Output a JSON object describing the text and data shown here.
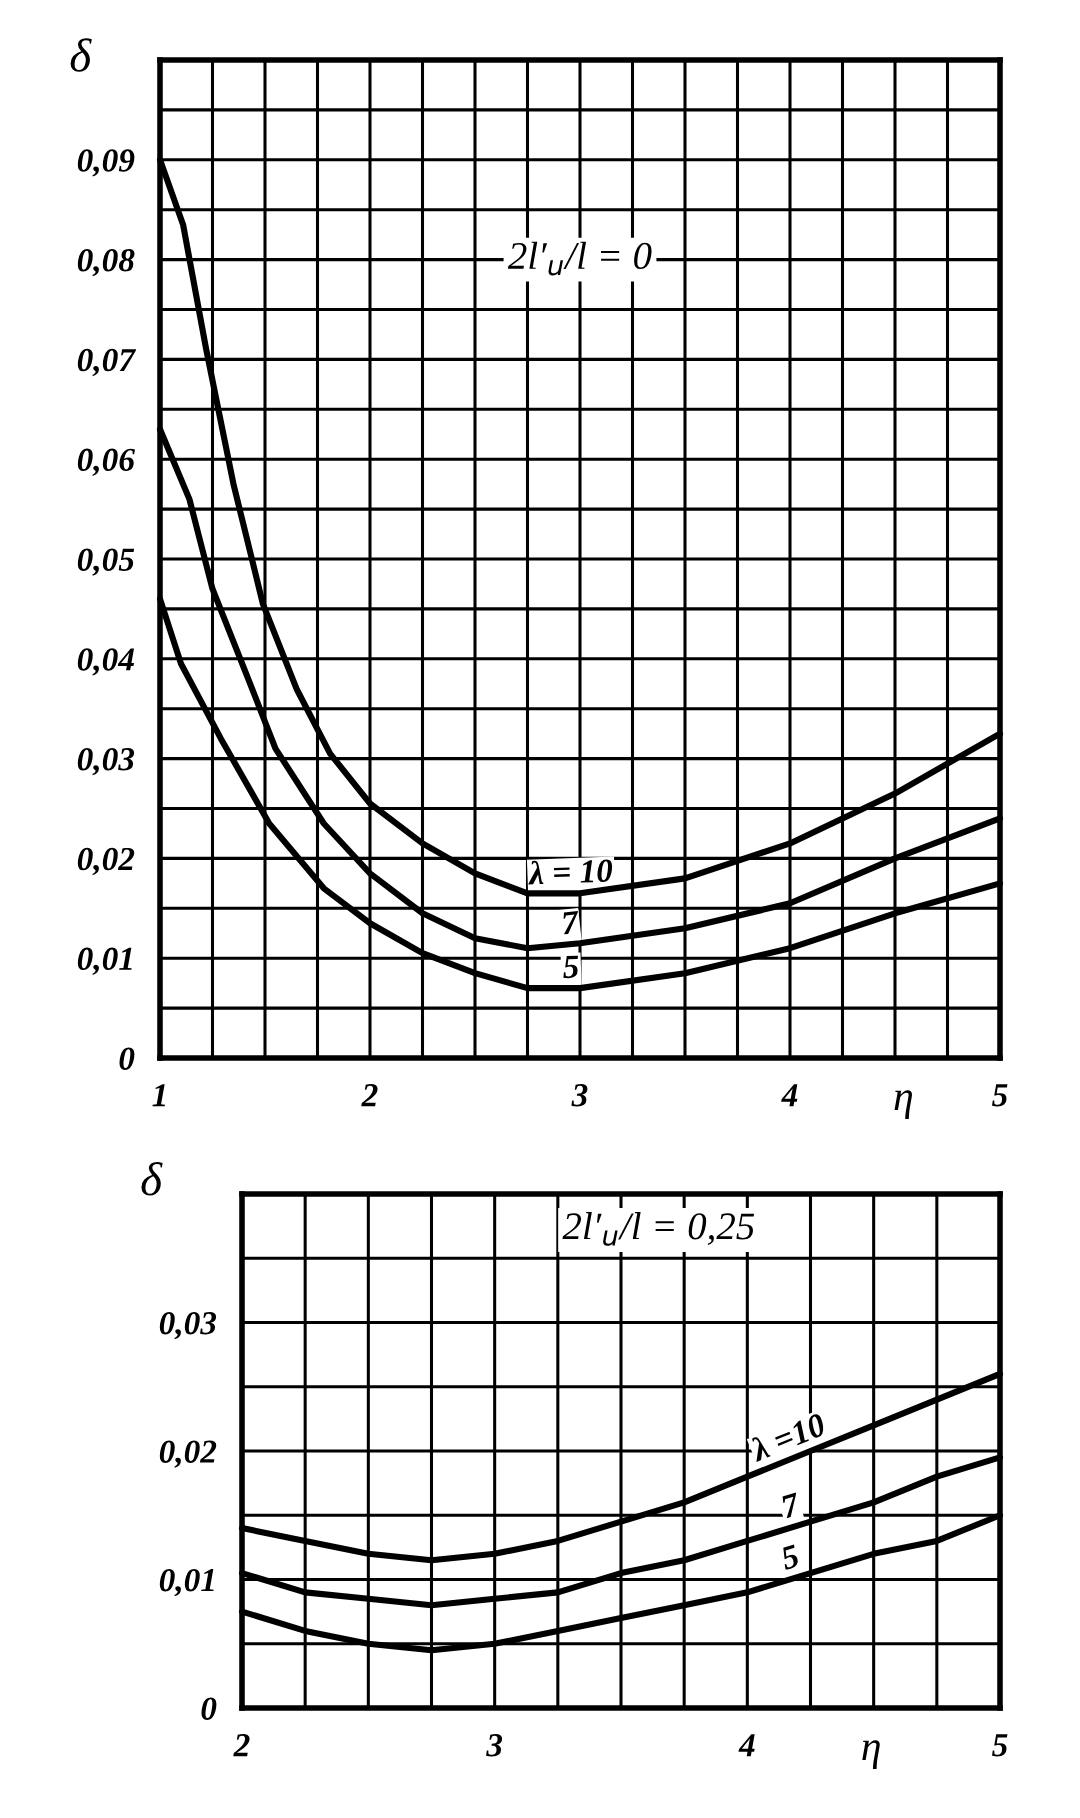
{
  "chart_data": [
    {
      "type": "line",
      "xlabel": "η",
      "ylabel": "δ",
      "annotations": [
        "2l′$_{u}$/l = 0"
      ],
      "xlim": [
        1,
        5
      ],
      "ylim": [
        0,
        0.1
      ],
      "xticks": [
        1,
        {
          "value": 1.25,
          "label": null
        },
        {
          "value": 1.5,
          "label": null
        },
        {
          "value": 1.75,
          "label": null
        },
        2,
        {
          "value": 2.25,
          "label": null
        },
        {
          "value": 2.5,
          "label": null
        },
        {
          "value": 2.75,
          "label": null
        },
        3,
        {
          "value": 3.25,
          "label": null
        },
        {
          "value": 3.5,
          "label": null
        },
        {
          "value": 3.75,
          "label": null
        },
        4,
        {
          "value": 4.25,
          "label": null
        },
        {
          "value": 4.5,
          "label": null
        },
        {
          "value": 4.75,
          "label": null
        },
        5
      ],
      "yticks": [
        0,
        {
          "value": 0.005,
          "label": null
        },
        {
          "value": 0.01,
          "label": "0,01"
        },
        {
          "value": 0.015,
          "label": null
        },
        {
          "value": 0.02,
          "label": "0,02"
        },
        {
          "value": 0.025,
          "label": null
        },
        {
          "value": 0.03,
          "label": "0,03"
        },
        {
          "value": 0.035,
          "label": null
        },
        {
          "value": 0.04,
          "label": "0,04"
        },
        {
          "value": 0.045,
          "label": null
        },
        {
          "value": 0.05,
          "label": "0,05"
        },
        {
          "value": 0.055,
          "label": null
        },
        {
          "value": 0.06,
          "label": "0,06"
        },
        {
          "value": 0.065,
          "label": null
        },
        {
          "value": 0.07,
          "label": "0,07"
        },
        {
          "value": 0.075,
          "label": null
        },
        {
          "value": 0.08,
          "label": "0,08"
        },
        {
          "value": 0.085,
          "label": null
        },
        {
          "value": 0.09,
          "label": "0,09"
        },
        {
          "value": 0.095,
          "label": null
        },
        {
          "value": 0.1,
          "label": null
        }
      ],
      "grid": true,
      "series": [
        {
          "name": "λ = 10",
          "color": "#000000",
          "x": [
            1.0,
            1.11,
            1.22,
            1.35,
            1.49,
            1.65,
            1.81,
            2.0,
            2.25,
            2.5,
            2.75,
            3.0,
            3.5,
            4.0,
            4.5,
            5.0
          ],
          "values": [
            0.09,
            0.0835,
            0.071,
            0.0575,
            0.0455,
            0.037,
            0.0305,
            0.0255,
            0.0215,
            0.0185,
            0.0165,
            0.0165,
            0.018,
            0.0215,
            0.0265,
            0.0325
          ]
        },
        {
          "name": "7",
          "color": "#000000",
          "x": [
            1.0,
            1.14,
            1.25,
            1.42,
            1.55,
            1.78,
            2.0,
            2.25,
            2.5,
            2.75,
            3.0,
            3.5,
            4.0,
            4.5,
            5.0
          ],
          "values": [
            0.063,
            0.056,
            0.047,
            0.038,
            0.031,
            0.0235,
            0.0185,
            0.0145,
            0.012,
            0.011,
            0.0115,
            0.013,
            0.0155,
            0.02,
            0.024
          ]
        },
        {
          "name": "5",
          "color": "#000000",
          "x": [
            1.0,
            1.1,
            1.29,
            1.52,
            1.78,
            2.0,
            2.25,
            2.5,
            2.75,
            3.0,
            3.5,
            4.0,
            4.5,
            5.0
          ],
          "values": [
            0.046,
            0.0395,
            0.032,
            0.0235,
            0.017,
            0.0135,
            0.0105,
            0.0085,
            0.007,
            0.007,
            0.0085,
            0.011,
            0.0145,
            0.0175
          ]
        }
      ]
    },
    {
      "type": "line",
      "xlabel": "η",
      "ylabel": "δ",
      "annotations": [
        "2l′$_{u}$/l = 0,25"
      ],
      "xlim": [
        2,
        5
      ],
      "ylim": [
        0,
        0.04
      ],
      "xticks": [
        2,
        {
          "value": 2.25,
          "label": null
        },
        {
          "value": 2.5,
          "label": null
        },
        {
          "value": 2.75,
          "label": null
        },
        3,
        {
          "value": 3.25,
          "label": null
        },
        {
          "value": 3.5,
          "label": null
        },
        {
          "value": 3.75,
          "label": null
        },
        4,
        {
          "value": 4.25,
          "label": null
        },
        {
          "value": 4.5,
          "label": null
        },
        {
          "value": 4.75,
          "label": null
        },
        5
      ],
      "yticks": [
        0,
        {
          "value": 0.005,
          "label": null
        },
        {
          "value": 0.01,
          "label": "0,01"
        },
        {
          "value": 0.015,
          "label": null
        },
        {
          "value": 0.02,
          "label": "0,02"
        },
        {
          "value": 0.025,
          "label": null
        },
        {
          "value": 0.03,
          "label": "0,03"
        },
        {
          "value": 0.035,
          "label": null
        },
        {
          "value": 0.04,
          "label": null
        }
      ],
      "grid": true,
      "series": [
        {
          "name": "λ =10",
          "color": "#000000",
          "x": [
            2.0,
            2.25,
            2.5,
            2.75,
            3.0,
            3.25,
            3.5,
            3.75,
            4.0,
            4.25,
            4.5,
            4.75,
            5.0
          ],
          "values": [
            0.014,
            0.013,
            0.012,
            0.0115,
            0.012,
            0.013,
            0.0145,
            0.016,
            0.018,
            0.02,
            0.022,
            0.024,
            0.026
          ]
        },
        {
          "name": "7",
          "color": "#000000",
          "x": [
            2.0,
            2.25,
            2.5,
            2.75,
            3.0,
            3.25,
            3.5,
            3.75,
            4.0,
            4.25,
            4.5,
            4.75,
            5.0
          ],
          "values": [
            0.0105,
            0.009,
            0.0085,
            0.008,
            0.0085,
            0.009,
            0.0105,
            0.0115,
            0.013,
            0.0145,
            0.016,
            0.018,
            0.0195
          ]
        },
        {
          "name": "5",
          "color": "#000000",
          "x": [
            2.0,
            2.25,
            2.5,
            2.75,
            3.0,
            3.25,
            3.5,
            3.75,
            4.0,
            4.25,
            4.5,
            4.75,
            5.0
          ],
          "values": [
            0.0075,
            0.006,
            0.005,
            0.0045,
            0.005,
            0.006,
            0.007,
            0.008,
            0.009,
            0.0105,
            0.012,
            0.013,
            0.015
          ]
        }
      ]
    }
  ]
}
